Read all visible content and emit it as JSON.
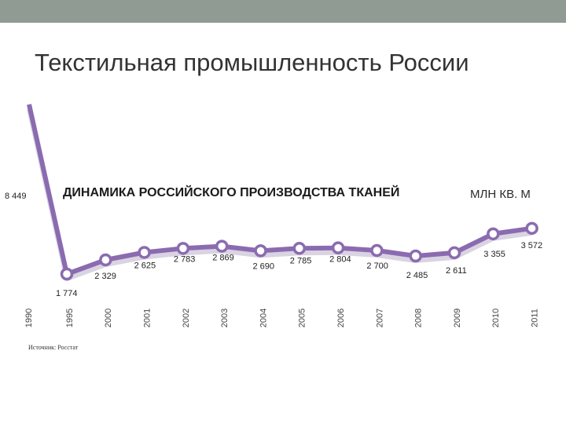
{
  "slide": {
    "title": "Текстильная промышленность России",
    "chart_heading": "ДИНАМИКА РОССИЙСКОГО ПРОИЗВОДСТВА ТКАНЕЙ",
    "unit": "МЛН КВ. М",
    "source": "Источник: Росстат"
  },
  "colors": {
    "line": "#8b6bb0",
    "shadow": "#d9d3e2",
    "point_fill": "#ffffff",
    "header_bar": "#909c93"
  },
  "chart_data": {
    "type": "line",
    "title": "ДИНАМИКА РОССИЙСКОГО ПРОИЗВОДСТВА ТКАНЕЙ",
    "unit": "МЛН КВ. М",
    "xlabel": "",
    "ylabel": "",
    "categories": [
      "1990",
      "1995",
      "2000",
      "2001",
      "2002",
      "2003",
      "2004",
      "2005",
      "2006",
      "2007",
      "2008",
      "2009",
      "2010",
      "2011"
    ],
    "values": [
      8449,
      1774,
      2329,
      2625,
      2783,
      2869,
      2690,
      2785,
      2804,
      2700,
      2485,
      2611,
      3355,
      3572
    ],
    "labels": [
      "8 449",
      "1 774",
      "2 329",
      "2 625",
      "2 783",
      "2 869",
      "2 690",
      "2 785",
      "2 804",
      "2 700",
      "2 485",
      "2 611",
      "3 355",
      "3 572"
    ],
    "grid": false,
    "legend": "none"
  }
}
